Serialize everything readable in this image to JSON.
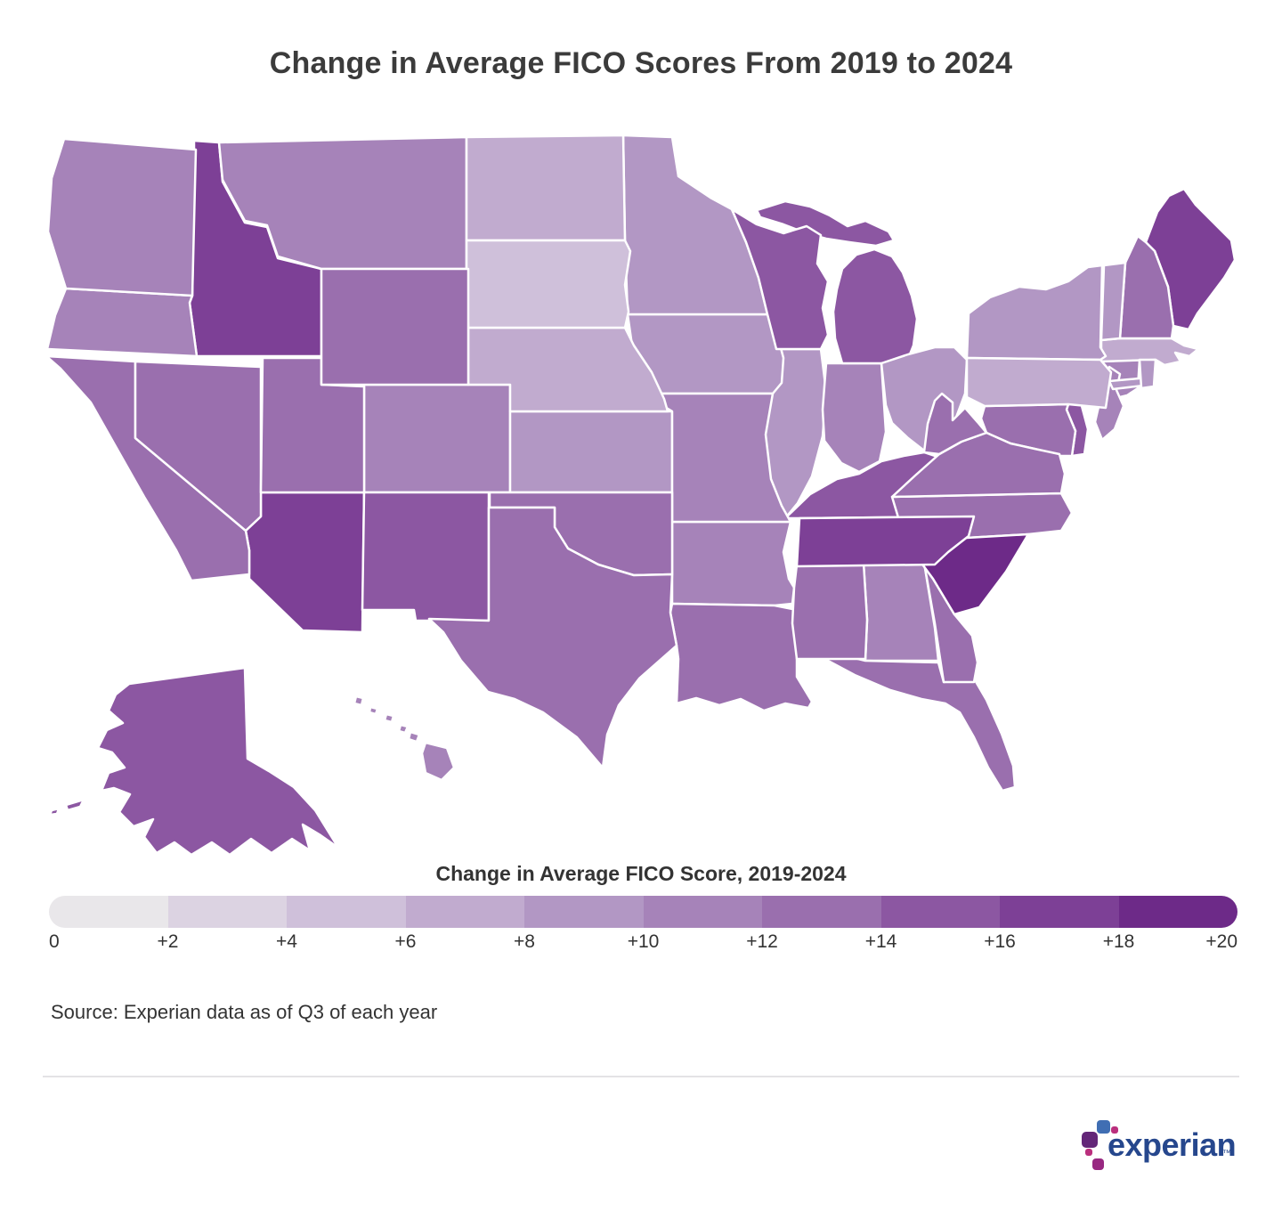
{
  "title": "Change in Average FICO Scores From 2019 to 2024",
  "legend": {
    "title": "Change in Average FICO Score, 2019-2024",
    "tick_labels": [
      "0",
      "+2",
      "+4",
      "+6",
      "+8",
      "+10",
      "+12",
      "+14",
      "+16",
      "+18",
      "+20"
    ],
    "colors": [
      "#e9e7ea",
      "#dcd3e2",
      "#cfc0da",
      "#c1abcf",
      "#b297c4",
      "#a683b9",
      "#9a6fae",
      "#8c57a2",
      "#7d4096",
      "#6d2a88"
    ]
  },
  "source": "Source: Experian data as of Q3 of each year",
  "logo": {
    "text": "experian",
    "tm": "™"
  },
  "chart_data": {
    "type": "choropleth",
    "title": "Change in Average FICO Scores From 2019 to 2024",
    "legend_title": "Change in Average FICO Score, 2019-2024",
    "unit": "FICO score points",
    "domain": [
      0,
      20
    ],
    "bucket_step": 2,
    "legend_position": "bottom",
    "states": [
      {
        "abbr": "AL",
        "name": "Alabama",
        "value": 10
      },
      {
        "abbr": "AK",
        "name": "Alaska",
        "value": 14
      },
      {
        "abbr": "AZ",
        "name": "Arizona",
        "value": 16
      },
      {
        "abbr": "AR",
        "name": "Arkansas",
        "value": 10
      },
      {
        "abbr": "CA",
        "name": "California",
        "value": 12
      },
      {
        "abbr": "CO",
        "name": "Colorado",
        "value": 10
      },
      {
        "abbr": "CT",
        "name": "Connecticut",
        "value": 11
      },
      {
        "abbr": "DE",
        "name": "Delaware",
        "value": 14
      },
      {
        "abbr": "FL",
        "name": "Florida",
        "value": 13
      },
      {
        "abbr": "GA",
        "name": "Georgia",
        "value": 12
      },
      {
        "abbr": "HI",
        "name": "Hawaii",
        "value": 10
      },
      {
        "abbr": "ID",
        "name": "Idaho",
        "value": 17
      },
      {
        "abbr": "IL",
        "name": "Illinois",
        "value": 9
      },
      {
        "abbr": "IN",
        "name": "Indiana",
        "value": 10
      },
      {
        "abbr": "IA",
        "name": "Iowa",
        "value": 9
      },
      {
        "abbr": "KS",
        "name": "Kansas",
        "value": 8
      },
      {
        "abbr": "KY",
        "name": "Kentucky",
        "value": 14
      },
      {
        "abbr": "LA",
        "name": "Louisiana",
        "value": 13
      },
      {
        "abbr": "ME",
        "name": "Maine",
        "value": 16
      },
      {
        "abbr": "MD",
        "name": "Maryland",
        "value": 12
      },
      {
        "abbr": "MA",
        "name": "Massachusetts",
        "value": 7
      },
      {
        "abbr": "MI",
        "name": "Michigan",
        "value": 14
      },
      {
        "abbr": "MN",
        "name": "Minnesota",
        "value": 8
      },
      {
        "abbr": "MS",
        "name": "Mississippi",
        "value": 12
      },
      {
        "abbr": "MO",
        "name": "Missouri",
        "value": 11
      },
      {
        "abbr": "MT",
        "name": "Montana",
        "value": 11
      },
      {
        "abbr": "NE",
        "name": "Nebraska",
        "value": 7
      },
      {
        "abbr": "NV",
        "name": "Nevada",
        "value": 12
      },
      {
        "abbr": "NH",
        "name": "New Hampshire",
        "value": 12
      },
      {
        "abbr": "NJ",
        "name": "New Jersey",
        "value": 11
      },
      {
        "abbr": "NM",
        "name": "New Mexico",
        "value": 15
      },
      {
        "abbr": "NY",
        "name": "New York",
        "value": 9
      },
      {
        "abbr": "NC",
        "name": "North Carolina",
        "value": 13
      },
      {
        "abbr": "ND",
        "name": "North Dakota",
        "value": 6
      },
      {
        "abbr": "OH",
        "name": "Ohio",
        "value": 8
      },
      {
        "abbr": "OK",
        "name": "Oklahoma",
        "value": 13
      },
      {
        "abbr": "OR",
        "name": "Oregon",
        "value": 11
      },
      {
        "abbr": "PA",
        "name": "Pennsylvania",
        "value": 6
      },
      {
        "abbr": "RI",
        "name": "Rhode Island",
        "value": 9
      },
      {
        "abbr": "SC",
        "name": "South Carolina",
        "value": 19
      },
      {
        "abbr": "SD",
        "name": "South Dakota",
        "value": 5
      },
      {
        "abbr": "TN",
        "name": "Tennessee",
        "value": 16
      },
      {
        "abbr": "TX",
        "name": "Texas",
        "value": 13
      },
      {
        "abbr": "UT",
        "name": "Utah",
        "value": 13
      },
      {
        "abbr": "VT",
        "name": "Vermont",
        "value": 9
      },
      {
        "abbr": "VA",
        "name": "Virginia",
        "value": 13
      },
      {
        "abbr": "WA",
        "name": "Washington",
        "value": 11
      },
      {
        "abbr": "WV",
        "name": "West Virginia",
        "value": 13
      },
      {
        "abbr": "WI",
        "name": "Wisconsin",
        "value": 14
      },
      {
        "abbr": "WY",
        "name": "Wyoming",
        "value": 12
      }
    ]
  }
}
